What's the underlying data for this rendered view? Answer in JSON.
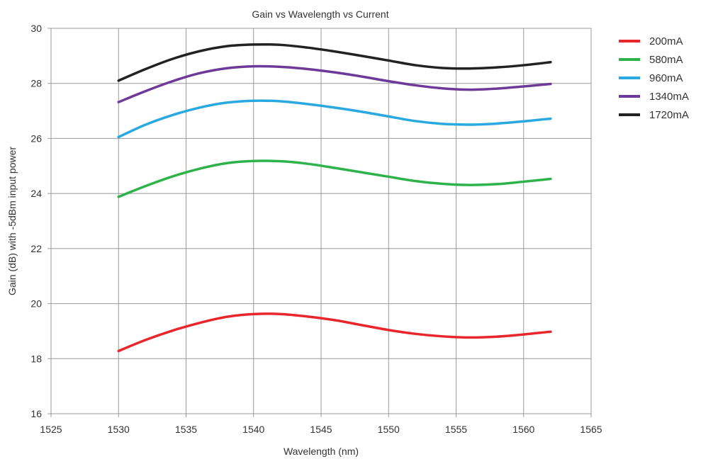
{
  "chart_data": {
    "type": "line",
    "title": "Gain vs Wavelength vs Current",
    "xlabel": "Wavelength (nm)",
    "ylabel": "Gain (dB) with -5dBm input power",
    "xlim": [
      1525,
      1565
    ],
    "ylim": [
      16,
      30
    ],
    "xticks": [
      "1525",
      "1530",
      "1535",
      "1540",
      "1545",
      "1550",
      "1555",
      "1560",
      "1565"
    ],
    "yticks": [
      "16",
      "18",
      "20",
      "22",
      "24",
      "26",
      "28",
      "30"
    ],
    "grid": true,
    "legend_position": "right",
    "x": [
      1530,
      1532,
      1534,
      1536,
      1538,
      1540,
      1542,
      1544,
      1546,
      1548,
      1550,
      1552,
      1554,
      1556,
      1558,
      1560,
      1562
    ],
    "series": [
      {
        "name": "200mA",
        "color": "#e8262b",
        "values": [
          18.28,
          18.68,
          19.02,
          19.3,
          19.52,
          19.62,
          19.62,
          19.53,
          19.4,
          19.22,
          19.04,
          18.9,
          18.81,
          18.77,
          18.8,
          18.88,
          18.98
        ]
      },
      {
        "name": "580mA",
        "color": "#2eb34a",
        "values": [
          23.88,
          24.27,
          24.62,
          24.9,
          25.1,
          25.18,
          25.17,
          25.08,
          24.93,
          24.77,
          24.61,
          24.45,
          24.35,
          24.31,
          24.34,
          24.43,
          24.53
        ]
      },
      {
        "name": "960mA",
        "color": "#2aa8e0",
        "values": [
          26.05,
          26.5,
          26.85,
          27.12,
          27.3,
          27.37,
          27.35,
          27.25,
          27.12,
          26.97,
          26.8,
          26.63,
          26.53,
          26.5,
          26.54,
          26.62,
          26.72
        ]
      },
      {
        "name": "1340mA",
        "color": "#6e3a99",
        "values": [
          27.32,
          27.72,
          28.08,
          28.37,
          28.55,
          28.62,
          28.6,
          28.52,
          28.4,
          28.25,
          28.08,
          27.93,
          27.82,
          27.77,
          27.81,
          27.89,
          27.98
        ]
      },
      {
        "name": "1720mA",
        "color": "#222222",
        "values": [
          28.1,
          28.52,
          28.89,
          29.17,
          29.35,
          29.41,
          29.4,
          29.3,
          29.16,
          29.0,
          28.83,
          28.66,
          28.56,
          28.54,
          28.58,
          28.66,
          28.77
        ]
      }
    ]
  }
}
